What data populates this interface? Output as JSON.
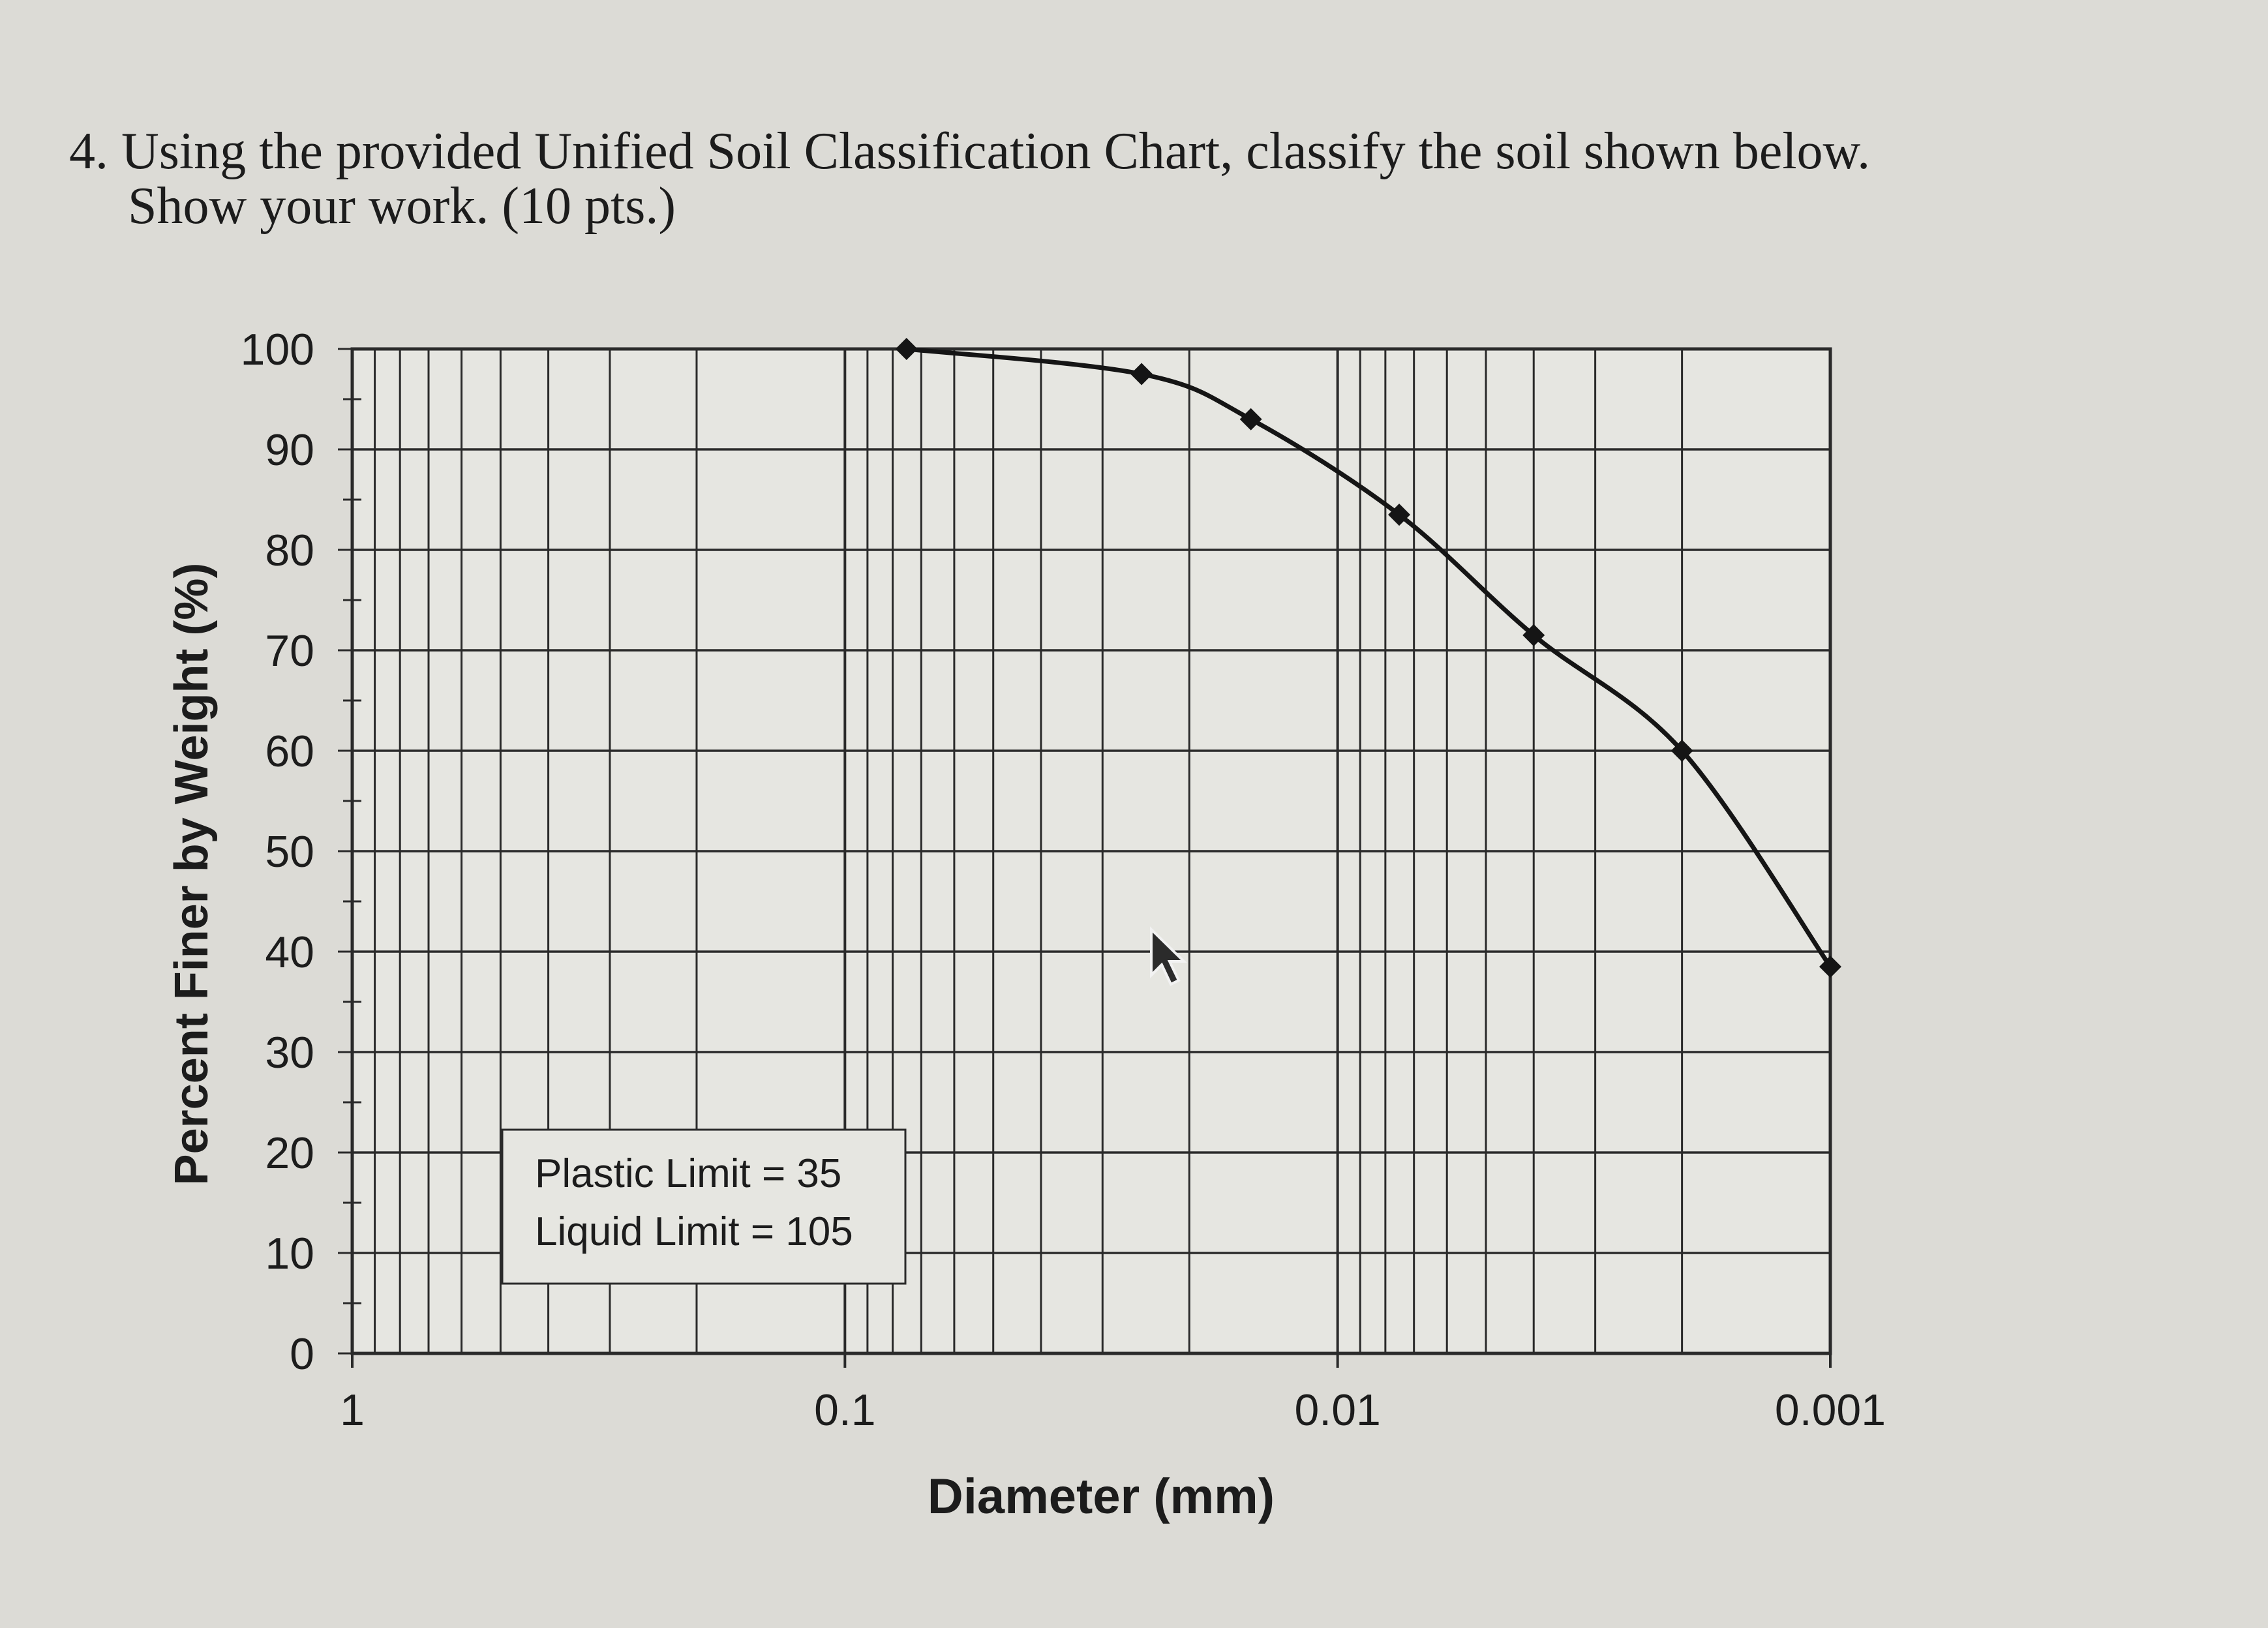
{
  "question": {
    "line1": "4. Using the provided Unified Soil Classification Chart, classify the soil shown below.",
    "line2": "Show your work. (10 pts.)"
  },
  "colors": {
    "background": "#dcdbd6",
    "plot_background": "#e6e6e1",
    "grid": "#2a2a2a",
    "curve": "#151515",
    "text": "#1c1c1c"
  },
  "chart_data": {
    "type": "line",
    "title": "",
    "xlabel": "Diameter (mm)",
    "ylabel": "Percent Finer by Weight (%)",
    "x_scale": "log",
    "x_reversed": true,
    "xlim": [
      1,
      0.001
    ],
    "ylim": [
      0,
      100
    ],
    "x_ticks": [
      1,
      0.1,
      0.01,
      0.001
    ],
    "x_tick_labels": [
      "1",
      "0.1",
      "0.01",
      "0.001"
    ],
    "y_ticks": [
      0,
      10,
      20,
      30,
      40,
      50,
      60,
      70,
      80,
      90,
      100
    ],
    "y_tick_labels": [
      "0",
      "10",
      "20",
      "30",
      "40",
      "50",
      "60",
      "70",
      "80",
      "90",
      "100"
    ],
    "grid": true,
    "marker": "diamond",
    "x": [
      0.075,
      0.025,
      0.015,
      0.0075,
      0.004,
      0.002,
      0.001
    ],
    "y": [
      100,
      97.5,
      93,
      83.5,
      71.5,
      60,
      38.5
    ],
    "annotation": {
      "line1": "Plastic Limit = 35",
      "line2": "Liquid Limit = 105"
    }
  }
}
